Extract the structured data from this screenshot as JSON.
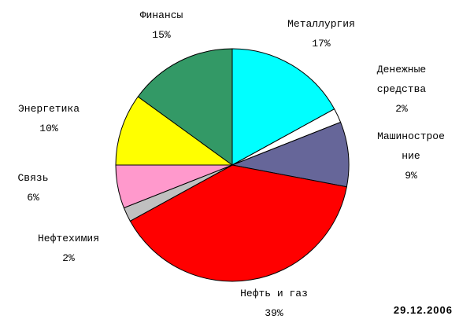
{
  "chart_data": {
    "type": "pie",
    "categories": [
      "Металлургия",
      "Денежные\nсредства",
      "Машинострое\nние",
      "Нефть и газ",
      "Нефтехимия",
      "Связь",
      "Энергетика",
      "Финансы"
    ],
    "values": [
      17,
      2,
      9,
      39,
      2,
      6,
      10,
      15
    ],
    "value_labels": [
      "17%",
      "2%",
      "9%",
      "39%",
      "2%",
      "6%",
      "10%",
      "15%"
    ],
    "colors": [
      "#00ffff",
      "#ffffff",
      "#666699",
      "#ff0000",
      "#c0c0c0",
      "#ff99cc",
      "#ffff00",
      "#339966"
    ],
    "date": "29.12.2006"
  }
}
